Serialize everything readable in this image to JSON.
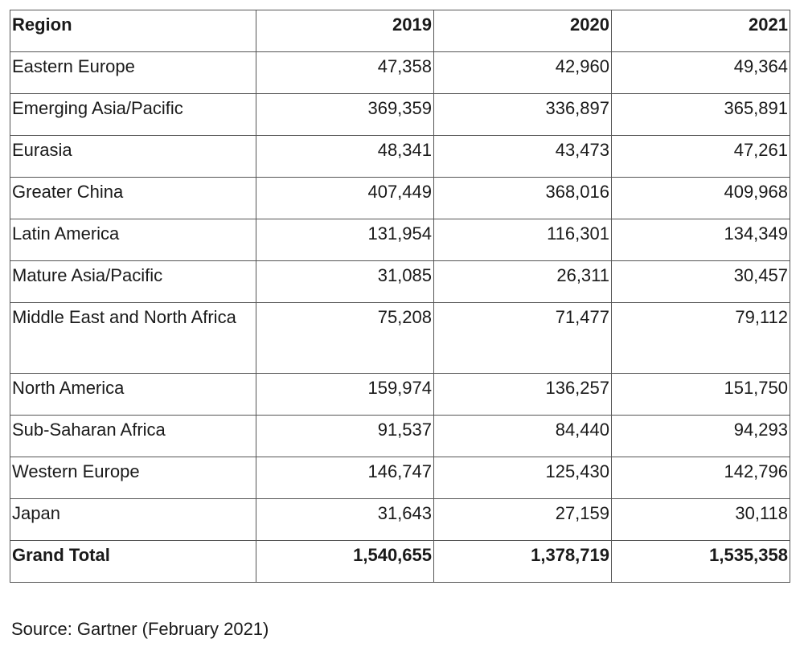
{
  "table": {
    "headers": [
      "Region",
      "2019",
      "2020",
      "2021"
    ],
    "rows": [
      [
        "Eastern Europe",
        "47,358",
        "42,960",
        "49,364"
      ],
      [
        "Emerging Asia/Pacific",
        "369,359",
        "336,897",
        "365,891"
      ],
      [
        "Eurasia",
        "48,341",
        "43,473",
        "47,261"
      ],
      [
        "Greater China",
        "407,449",
        "368,016",
        "409,968"
      ],
      [
        "Latin America",
        "131,954",
        "116,301",
        "134,349"
      ],
      [
        "Mature Asia/Pacific",
        "31,085",
        "26,311",
        "30,457"
      ],
      [
        "Middle East and North Africa",
        "75,208",
        "71,477",
        "79,112"
      ],
      [
        "North America",
        "159,974",
        "136,257",
        "151,750"
      ],
      [
        "Sub-Saharan Africa",
        "91,537",
        "84,440",
        "94,293"
      ],
      [
        "Western Europe",
        "146,747",
        "125,430",
        "142,796"
      ],
      [
        "Japan",
        "31,643",
        "27,159",
        "30,118"
      ]
    ],
    "total": [
      "Grand Total",
      "1,540,655",
      "1,378,719",
      "1,535,358"
    ]
  },
  "source": "Source: Gartner (February 2021)"
}
